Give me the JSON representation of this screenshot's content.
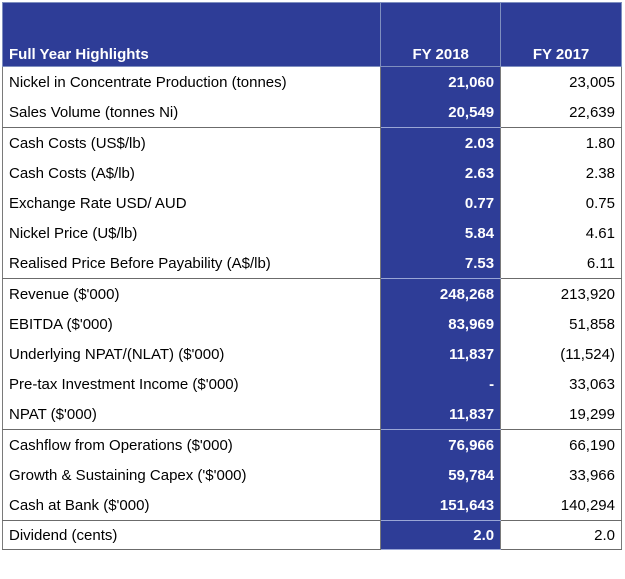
{
  "table": {
    "header": {
      "label": "Full Year Highlights",
      "fy2018": "FY 2018",
      "fy2017": "FY 2017"
    },
    "colors": {
      "header_bg": "#2e3d97",
      "highlight_col_bg": "#2e3d97",
      "highlight_col_text": "#ffffff"
    },
    "rows": [
      {
        "label": "Nickel in Concentrate Production (tonnes)",
        "fy2018": "21,060",
        "fy2017": "23,005"
      },
      {
        "label": "Sales Volume (tonnes Ni)",
        "fy2018": "20,549",
        "fy2017": "22,639"
      },
      {
        "label": "Cash Costs (US$/lb)",
        "fy2018": "2.03",
        "fy2017": "1.80"
      },
      {
        "label": "Cash Costs (A$/lb)",
        "fy2018": "2.63",
        "fy2017": "2.38"
      },
      {
        "label": "Exchange Rate USD/ AUD",
        "fy2018": "0.77",
        "fy2017": "0.75"
      },
      {
        "label": "Nickel Price (U$/lb)",
        "fy2018": "5.84",
        "fy2017": "4.61"
      },
      {
        "label": "Realised Price Before Payability (A$/lb)",
        "fy2018": "7.53",
        "fy2017": "6.11"
      },
      {
        "label": "Revenue ($'000)",
        "fy2018": "248,268",
        "fy2017": "213,920"
      },
      {
        "label": "EBITDA ($'000)",
        "fy2018": "83,969",
        "fy2017": "51,858"
      },
      {
        "label": "Underlying NPAT/(NLAT) ($'000)",
        "fy2018": "11,837",
        "fy2017": "(11,524)"
      },
      {
        "label": "Pre-tax Investment Income ($'000)",
        "fy2018": "-",
        "fy2017": "33,063"
      },
      {
        "label": "NPAT ($'000)",
        "fy2018": "11,837",
        "fy2017": "19,299"
      },
      {
        "label": "Cashflow from Operations ($'000)",
        "fy2018": "76,966",
        "fy2017": "66,190"
      },
      {
        "label": "Growth & Sustaining Capex ('$'000)",
        "fy2018": "59,784",
        "fy2017": "33,966"
      },
      {
        "label": "Cash at Bank ($'000)",
        "fy2018": "151,643",
        "fy2017": "140,294"
      },
      {
        "label": "Dividend (cents)",
        "fy2018": "2.0",
        "fy2017": "2.0"
      }
    ]
  }
}
